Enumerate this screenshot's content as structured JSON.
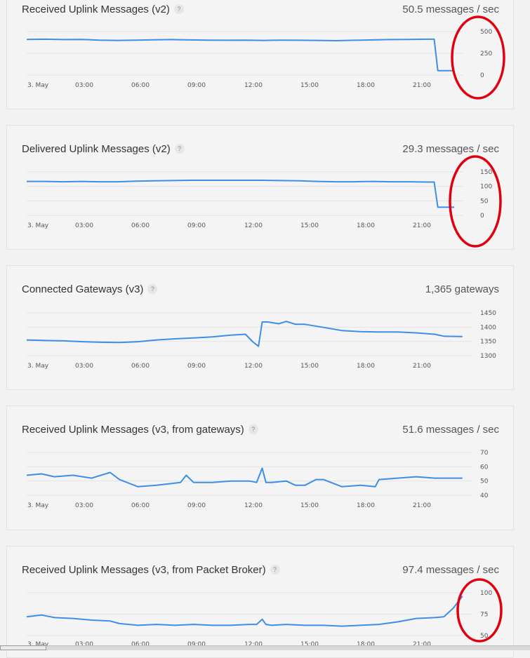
{
  "colors": {
    "line": "#3d8ee6",
    "highlight": "#e00010",
    "grid": "#e4e4e4"
  },
  "help_icon_glyph": "?",
  "chart_data": [
    {
      "type": "line",
      "title": "Received Uplink Messages (v2)",
      "current_value": "50.5 messages / sec",
      "x_tick_labels": [
        "3. May",
        "03:00",
        "06:00",
        "09:00",
        "12:00",
        "15:00",
        "18:00",
        "21:00"
      ],
      "y_tick_labels": [
        "500",
        "250",
        "0"
      ],
      "ylim": [
        0,
        500
      ],
      "x_hours_range": [
        0,
        24
      ],
      "grid": true,
      "highlighted": true,
      "series": [
        {
          "x": [
            0,
            1,
            2,
            3,
            4,
            5,
            6,
            7,
            8,
            9,
            10,
            11,
            12,
            13,
            14,
            15,
            16,
            17,
            18,
            19,
            20,
            21,
            22,
            22.4,
            22.6,
            23.5
          ],
          "values": [
            410,
            412,
            408,
            410,
            402,
            398,
            402,
            405,
            408,
            404,
            402,
            400,
            402,
            398,
            401,
            400,
            398,
            395,
            400,
            404,
            408,
            410,
            412,
            412,
            50,
            50
          ]
        }
      ]
    },
    {
      "type": "line",
      "title": "Delivered Uplink Messages (v2)",
      "current_value": "29.3 messages / sec",
      "x_tick_labels": [
        "3. May",
        "03:00",
        "06:00",
        "09:00",
        "12:00",
        "15:00",
        "18:00",
        "21:00"
      ],
      "y_tick_labels": [
        "150",
        "100",
        "50",
        "0"
      ],
      "ylim": [
        0,
        150
      ],
      "x_hours_range": [
        0,
        24
      ],
      "grid": true,
      "highlighted": true,
      "series": [
        {
          "x": [
            0,
            1,
            2,
            3,
            4,
            5,
            6,
            7,
            8,
            9,
            10,
            11,
            12,
            13,
            14,
            15,
            16,
            17,
            18,
            19,
            20,
            21,
            22,
            22.4,
            22.6,
            23.5
          ],
          "values": [
            117,
            117,
            116,
            117,
            116,
            116,
            118,
            119,
            120,
            121,
            121,
            121,
            121,
            121,
            120,
            119,
            117,
            116,
            116,
            117,
            116,
            116,
            115,
            115,
            28,
            28
          ]
        }
      ]
    },
    {
      "type": "line",
      "title": "Connected Gateways (v3)",
      "current_value": "1,365 gateways",
      "x_tick_labels": [
        "3. May",
        "03:00",
        "06:00",
        "09:00",
        "12:00",
        "15:00",
        "18:00",
        "21:00"
      ],
      "y_tick_labels": [
        "1450",
        "1400",
        "1350",
        "1300"
      ],
      "ylim": [
        1300,
        1450
      ],
      "x_hours_range": [
        0,
        24
      ],
      "grid": true,
      "highlighted": false,
      "series": [
        {
          "x": [
            0,
            1,
            2,
            3,
            4,
            5,
            6,
            7,
            8,
            9,
            10,
            11,
            11.8,
            12.2,
            12.5,
            12.7,
            13,
            13.6,
            14,
            14.5,
            15,
            16,
            17,
            18,
            19,
            20,
            21,
            22,
            22.5,
            23.5
          ],
          "values": [
            1355,
            1353,
            1352,
            1349,
            1347,
            1346,
            1349,
            1355,
            1359,
            1362,
            1366,
            1372,
            1375,
            1348,
            1333,
            1418,
            1418,
            1412,
            1420,
            1410,
            1410,
            1399,
            1388,
            1384,
            1383,
            1383,
            1380,
            1375,
            1368,
            1367
          ]
        }
      ]
    },
    {
      "type": "line",
      "title": "Received Uplink Messages (v3, from gateways)",
      "current_value": "51.6 messages / sec",
      "x_tick_labels": [
        "3. May",
        "03:00",
        "06:00",
        "09:00",
        "12:00",
        "15:00",
        "18:00",
        "21:00"
      ],
      "y_tick_labels": [
        "70",
        "60",
        "50",
        "40"
      ],
      "ylim": [
        40,
        70
      ],
      "x_hours_range": [
        0,
        24
      ],
      "grid": true,
      "highlighted": false,
      "series": [
        {
          "x": [
            0,
            0.8,
            1.5,
            2.5,
            3.5,
            4.5,
            5,
            6,
            7,
            8.3,
            8.6,
            9,
            10,
            11,
            12,
            12.4,
            12.7,
            12.9,
            13.2,
            14,
            14.5,
            15,
            15.6,
            16,
            17,
            18,
            18.8,
            19,
            20,
            21,
            22,
            23,
            23.5
          ],
          "values": [
            54,
            55,
            53,
            54,
            52,
            56,
            51,
            46,
            47,
            49,
            54,
            49,
            49,
            50,
            50,
            49,
            59,
            49,
            49,
            50,
            47,
            47,
            51,
            51,
            46,
            47,
            46,
            51,
            52,
            53,
            52,
            52,
            52
          ]
        }
      ]
    },
    {
      "type": "line",
      "title": "Received Uplink Messages (v3, from Packet Broker)",
      "current_value": "97.4 messages / sec",
      "x_tick_labels": [
        "3. May",
        "03:00",
        "06:00",
        "09:00",
        "12:00",
        "15:00",
        "18:00",
        "21:00"
      ],
      "y_tick_labels": [
        "100",
        "75",
        "50"
      ],
      "ylim": [
        50,
        100
      ],
      "x_hours_range": [
        0,
        24
      ],
      "grid": true,
      "highlighted": true,
      "series": [
        {
          "x": [
            0,
            0.8,
            1.5,
            2.5,
            3.5,
            4.5,
            5,
            6,
            7,
            8,
            9,
            10,
            11,
            12,
            12.4,
            12.7,
            12.9,
            13.2,
            14,
            15,
            16,
            17,
            18,
            19,
            20,
            21,
            22,
            22.5,
            23,
            23.5
          ],
          "values": [
            72,
            74,
            71,
            70,
            68,
            67,
            64,
            62,
            63,
            62,
            63,
            62,
            62,
            63,
            63,
            69,
            63,
            62,
            63,
            62,
            62,
            61,
            62,
            63,
            66,
            70,
            71,
            72,
            82,
            96
          ]
        }
      ]
    }
  ]
}
